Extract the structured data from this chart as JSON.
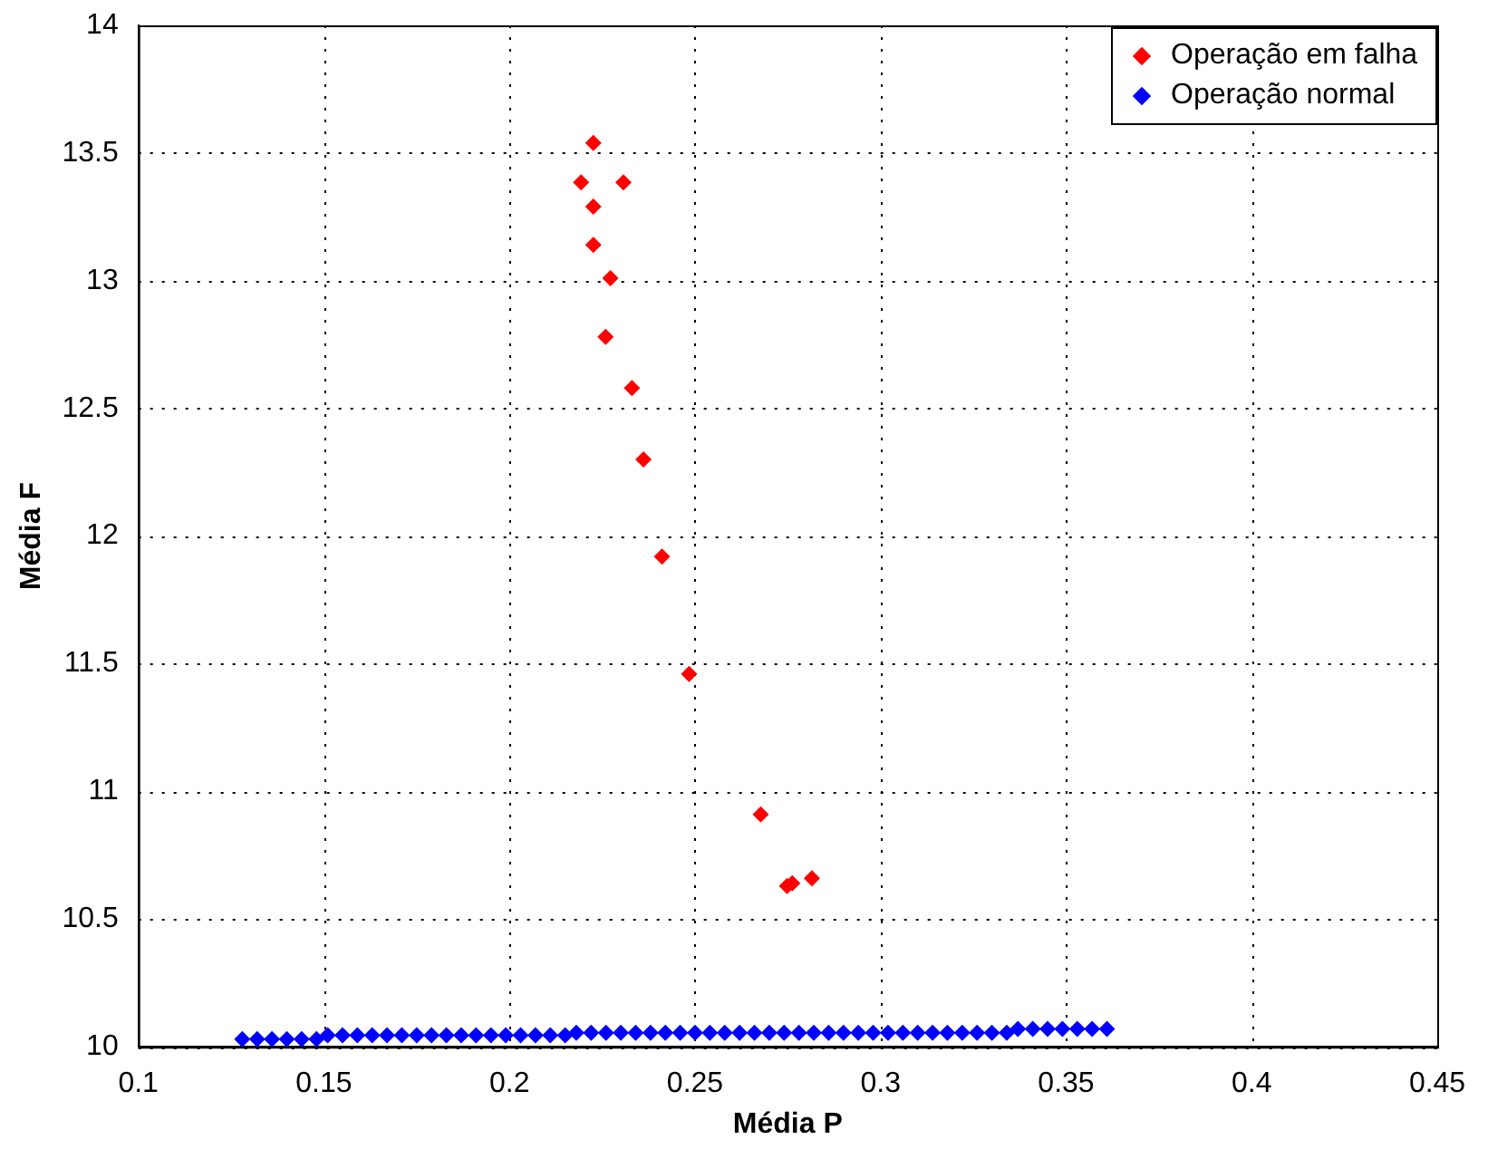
{
  "chart_data": {
    "type": "scatter",
    "xlabel": "Média P",
    "ylabel": "Média F",
    "xlim": [
      0.1,
      0.45
    ],
    "xticks": [
      0.1,
      0.15,
      0.2,
      0.25,
      0.3,
      0.35,
      0.4,
      0.45
    ],
    "ylim": [
      10,
      14
    ],
    "yticks": [
      10,
      10.5,
      11,
      11.5,
      12,
      12.5,
      13,
      13.5,
      14
    ],
    "grid": true,
    "legend": "top right",
    "marker": "diamond",
    "series": [
      {
        "name": "Operação em falha",
        "color": "#ff0000",
        "x": [
          0.2226,
          0.2193,
          0.2307,
          0.2226,
          0.2226,
          0.2272,
          0.2259,
          0.233,
          0.2361,
          0.2411,
          0.2484,
          0.2677,
          0.2748,
          0.2762,
          0.2815
        ],
        "values": [
          13.54,
          13.385,
          13.385,
          13.29,
          13.14,
          13.01,
          12.78,
          12.58,
          12.3,
          11.92,
          11.46,
          10.91,
          10.63,
          10.64,
          10.66
        ]
      },
      {
        "name": "Operação normal",
        "color": "#0000ff",
        "x": [
          0.128,
          0.132,
          0.136,
          0.14,
          0.144,
          0.148,
          0.151,
          0.155,
          0.159,
          0.163,
          0.167,
          0.171,
          0.175,
          0.179,
          0.183,
          0.187,
          0.191,
          0.195,
          0.199,
          0.203,
          0.207,
          0.211,
          0.215,
          0.218,
          0.222,
          0.226,
          0.23,
          0.234,
          0.238,
          0.242,
          0.246,
          0.25,
          0.254,
          0.258,
          0.262,
          0.266,
          0.27,
          0.274,
          0.278,
          0.282,
          0.286,
          0.29,
          0.294,
          0.298,
          0.302,
          0.306,
          0.31,
          0.314,
          0.318,
          0.322,
          0.326,
          0.33,
          0.334,
          0.337,
          0.341,
          0.345,
          0.349,
          0.353,
          0.357,
          0.361
        ],
        "values": [
          10.03,
          10.03,
          10.03,
          10.03,
          10.03,
          10.03,
          10.045,
          10.045,
          10.045,
          10.045,
          10.045,
          10.045,
          10.045,
          10.045,
          10.045,
          10.045,
          10.045,
          10.045,
          10.045,
          10.045,
          10.045,
          10.045,
          10.045,
          10.055,
          10.055,
          10.055,
          10.055,
          10.055,
          10.055,
          10.055,
          10.055,
          10.055,
          10.055,
          10.055,
          10.055,
          10.055,
          10.055,
          10.055,
          10.055,
          10.055,
          10.055,
          10.055,
          10.055,
          10.055,
          10.055,
          10.055,
          10.055,
          10.055,
          10.055,
          10.055,
          10.055,
          10.055,
          10.055,
          10.07,
          10.07,
          10.07,
          10.07,
          10.07,
          10.07,
          10.07
        ]
      }
    ]
  }
}
